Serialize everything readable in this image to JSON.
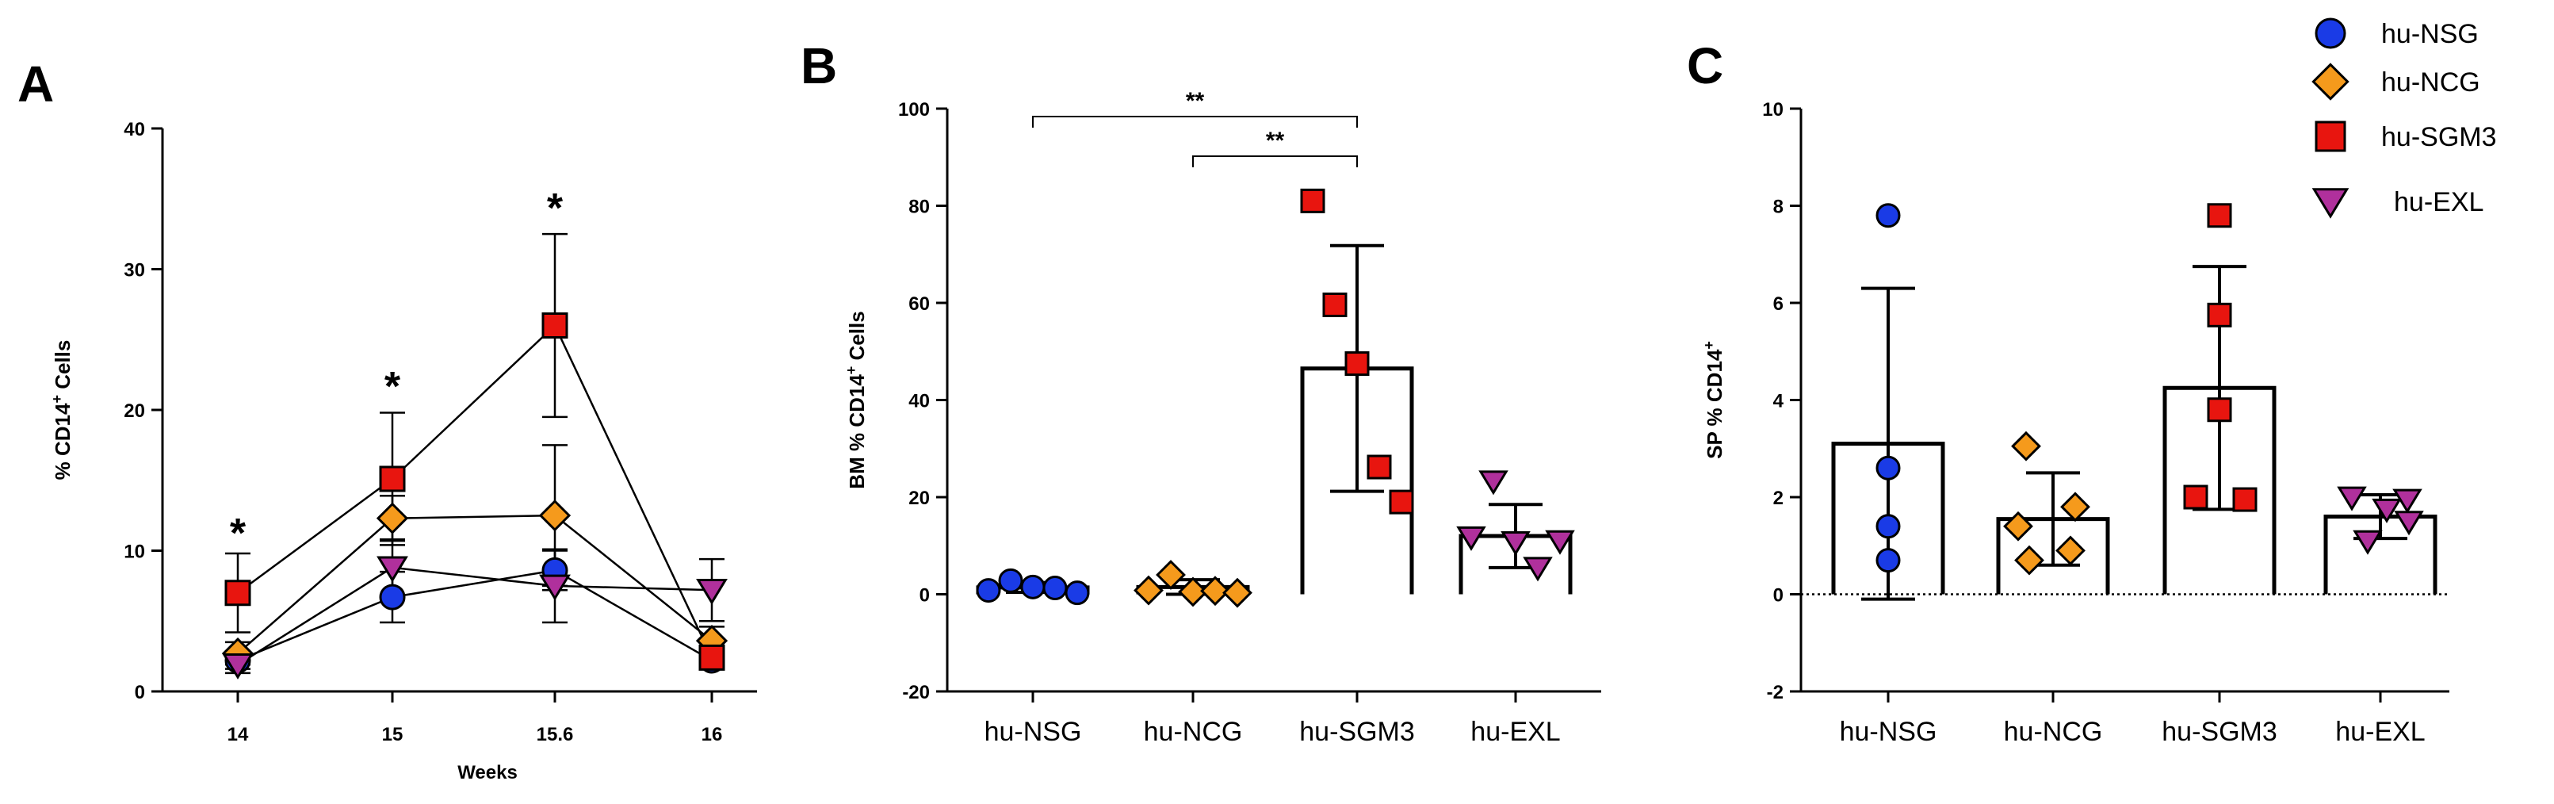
{
  "colors": {
    "hu-NSG": "#1a3be6",
    "hu-NCG": "#f59a1c",
    "hu-SGM3": "#e8150f",
    "hu-EXL": "#b0309c"
  },
  "legend": {
    "items": [
      {
        "label": "hu-NSG",
        "marker": "circle"
      },
      {
        "label": "hu-NCG",
        "marker": "diamond"
      },
      {
        "label": "hu-SGM3",
        "marker": "square"
      },
      {
        "label": "hu-EXL",
        "marker": "triangle-down"
      }
    ]
  },
  "chart_data": [
    {
      "panel": "A",
      "type": "line",
      "xlabel": "Weeks",
      "ylabel": "% CD14",
      "ylabel_sup": "+",
      "ylabel_tail": " Cells",
      "categories": [
        "14",
        "15",
        "15.6",
        "16"
      ],
      "ylim": [
        0,
        40
      ],
      "yticks": [
        "0",
        "10",
        "20",
        "30",
        "40"
      ],
      "series": [
        {
          "name": "hu-NSG",
          "marker": "circle",
          "values": [
            2.2,
            6.7,
            8.6,
            2.2
          ],
          "err": [
            0.6,
            1.8,
            1.4,
            0.4
          ]
        },
        {
          "name": "hu-NCG",
          "marker": "diamond",
          "values": [
            2.7,
            12.3,
            12.5,
            3.6
          ],
          "err": [
            0.8,
            1.6,
            5.0,
            1.0
          ]
        },
        {
          "name": "hu-SGM3",
          "marker": "square",
          "values": [
            7.0,
            15.1,
            26.0,
            2.4
          ],
          "err": [
            2.8,
            4.7,
            6.5,
            0.7
          ]
        },
        {
          "name": "hu-EXL",
          "marker": "triangle-down",
          "values": [
            1.9,
            8.8,
            7.5,
            7.2
          ],
          "err": [
            0.6,
            2.0,
            2.6,
            2.2
          ]
        }
      ],
      "annotations": [
        "*",
        "*",
        "*"
      ]
    },
    {
      "panel": "B",
      "type": "bar",
      "ylabel": "BM % CD14",
      "ylabel_sup": "+",
      "ylabel_tail": " Cells",
      "categories": [
        "hu-NSG",
        "hu-NCG",
        "hu-SGM3",
        "hu-EXL"
      ],
      "ylim": [
        -20,
        100
      ],
      "yticks": [
        "-20",
        "0",
        "20",
        "40",
        "60",
        "80",
        "100"
      ],
      "means": [
        1.4,
        1.5,
        46.5,
        12.0
      ],
      "sd": [
        1.0,
        1.5,
        25.3,
        6.5
      ],
      "points": [
        [
          0.8,
          2.8,
          1.5,
          1.3,
          0.3
        ],
        [
          0.8,
          4.0,
          0.5,
          0.7,
          0.3
        ],
        [
          81.0,
          59.6,
          47.5,
          26.2,
          19.0
        ],
        [
          11.8,
          23.3,
          10.8,
          5.5,
          11.0
        ]
      ],
      "significance": [
        {
          "from": "hu-NSG",
          "to": "hu-SGM3",
          "label": "**"
        },
        {
          "from": "hu-NCG",
          "to": "hu-SGM3",
          "label": "**"
        }
      ]
    },
    {
      "panel": "C",
      "type": "bar",
      "ylabel": "SP % CD14",
      "ylabel_sup": "+",
      "categories": [
        "hu-NSG",
        "hu-NCG",
        "hu-SGM3",
        "hu-EXL"
      ],
      "ylim": [
        -2,
        10
      ],
      "yticks": [
        "-2",
        "0",
        "2",
        "4",
        "6",
        "8",
        "10"
      ],
      "means": [
        3.1,
        1.55,
        4.25,
        1.6
      ],
      "sd": [
        3.2,
        0.95,
        2.5,
        0.45
      ],
      "points": [
        [
          7.8,
          2.6,
          1.4,
          0.7
        ],
        [
          3.05,
          1.4,
          1.8,
          0.7,
          0.9
        ],
        [
          7.8,
          5.75,
          3.8,
          2.0,
          1.95
        ],
        [
          2.0,
          1.1,
          1.75,
          1.95,
          1.5
        ]
      ]
    }
  ]
}
